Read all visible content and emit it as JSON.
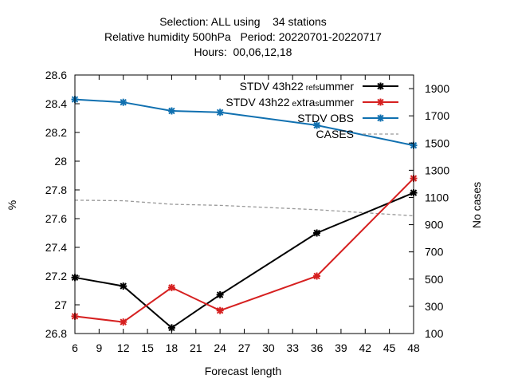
{
  "chart_data": {
    "type": "line",
    "title_lines": [
      "Selection: ALL using    34 stations",
      "Relative humidity 500hPa   Period: 20220701-20220717",
      "Hours:  00,06,12,18"
    ],
    "xlabel": "Forecast length",
    "ylabel": "%",
    "y2label": "No cases",
    "xlim": [
      6,
      48
    ],
    "ylim": [
      26.8,
      28.6
    ],
    "y2lim": [
      100,
      2000
    ],
    "xticks": [
      "6",
      "9",
      "12",
      "15",
      "18",
      "21",
      "24",
      "27",
      "30",
      "33",
      "36",
      "39",
      "42",
      "45",
      "48"
    ],
    "yticks": [
      "26.8",
      "27",
      "27.2",
      "27.4",
      "27.6",
      "27.8",
      "28",
      "28.2",
      "28.4",
      "28.6"
    ],
    "y2ticks": [
      "100",
      "300",
      "500",
      "700",
      "900",
      "1100",
      "1300",
      "1500",
      "1700",
      "1900"
    ],
    "legend_position": "top-right",
    "series": [
      {
        "name": "STDV 43h22_ref_summer",
        "label_parts": [
          "STDV 43h22",
          "ref",
          "s",
          "ummer"
        ],
        "color": "#000000",
        "axis": "y",
        "x": [
          6,
          12,
          18,
          24,
          36,
          48
        ],
        "values": [
          27.19,
          27.13,
          26.84,
          27.07,
          27.5,
          27.78
        ]
      },
      {
        "name": "STDV 43h22_extra_summer",
        "label_parts": [
          "STDV 43h22",
          "e",
          "xtra",
          "s",
          "ummer"
        ],
        "color": "#d62020",
        "axis": "y",
        "x": [
          6,
          12,
          18,
          24,
          36,
          48
        ],
        "values": [
          26.92,
          26.88,
          27.12,
          26.96,
          27.2,
          27.88
        ]
      },
      {
        "name": "STDV OBS",
        "color": "#1070b0",
        "axis": "y",
        "x": [
          6,
          12,
          18,
          24,
          36,
          48
        ],
        "values": [
          28.43,
          28.41,
          28.35,
          28.34,
          28.25,
          28.11
        ]
      },
      {
        "name": "CASES",
        "color": "#999999",
        "dashed": true,
        "axis": "y2",
        "x": [
          6,
          12,
          18,
          24,
          36,
          48
        ],
        "values": [
          1080,
          1076,
          1050,
          1042,
          1010,
          965
        ]
      }
    ]
  }
}
